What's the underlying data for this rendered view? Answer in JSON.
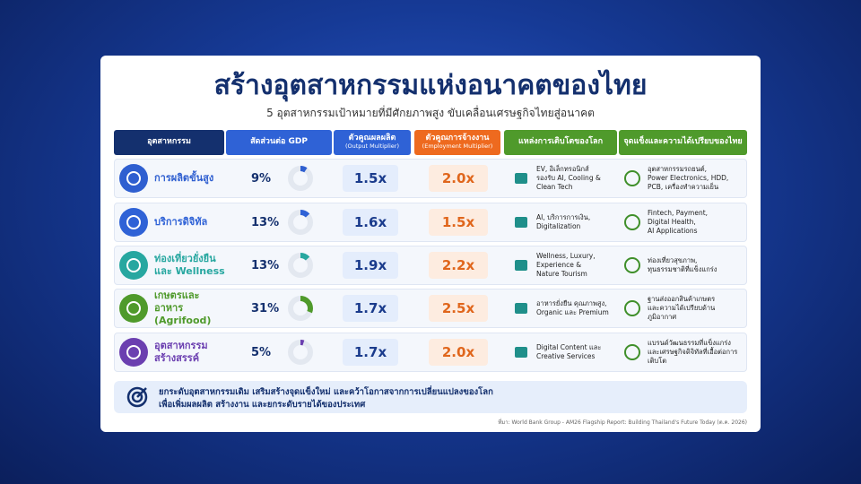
{
  "header": {
    "title": "สร้างอุตสาหกรรมแห่งอนาคตของไทย",
    "subtitle": "5 อุตสาหกรรมเป้าหมายที่มีศักยภาพสูง ขับเคลื่อนเศรษฐกิจไทยสู่อนาคต"
  },
  "table": {
    "columns": [
      {
        "title": "อุตสาหกรรม",
        "color": "#14306e"
      },
      {
        "title": "สัดส่วนต่อ GDP",
        "color": "#2f62d6"
      },
      {
        "title": "ตัวคูณผลผลิต",
        "subtitle": "(Output Multiplier)",
        "color": "#2f62d6"
      },
      {
        "title": "ตัวคูณการจ้างงาน",
        "subtitle": "(Employment Multiplier)",
        "color": "#ee6a1f"
      },
      {
        "title": "แหล่งการเติบโตของโลก",
        "color": "#4f9a2b"
      },
      {
        "title": "จุดแข็งและความได้เปรียบของไทย",
        "color": "#4f9a2b"
      }
    ],
    "rows": [
      {
        "industry": [
          "การผลิตขั้นสูง"
        ],
        "color": "#2f5fd0",
        "gdp_share": {
          "value": 9,
          "label": "9%"
        },
        "output_multiplier": "1.5x",
        "employment_multiplier": "2.0x",
        "growth_sources": [
          "EV, อิเล็กทรอนิกส์",
          "รองรับ AI, Cooling &",
          "Clean Tech"
        ],
        "strengths": [
          "อุตสาหกรรมรถยนต์,",
          "Power Electronics, HDD,",
          "PCB, เครื่องทำความเย็น"
        ]
      },
      {
        "industry": [
          "บริการดิจิทัล"
        ],
        "color": "#2f62d6",
        "gdp_share": {
          "value": 13,
          "label": "13%"
        },
        "output_multiplier": "1.6x",
        "employment_multiplier": "1.5x",
        "growth_sources": [
          "AI, บริการการเงิน,",
          "Digitalization"
        ],
        "strengths": [
          "Fintech, Payment,",
          "Digital Health,",
          "AI Applications"
        ]
      },
      {
        "industry": [
          "ท่องเที่ยวยั่งยืน",
          "และ Wellness"
        ],
        "color": "#27a7a0",
        "gdp_share": {
          "value": 13,
          "label": "13%"
        },
        "output_multiplier": "1.9x",
        "employment_multiplier": "2.2x",
        "growth_sources": [
          "Wellness, Luxury,",
          "Experience &",
          "Nature Tourism"
        ],
        "strengths": [
          "ท่องเที่ยวสุขภาพ,",
          "ทุนธรรมชาติที่แข็งแกร่ง"
        ]
      },
      {
        "industry": [
          "เกษตรและอาหาร",
          "(Agrifood)"
        ],
        "color": "#4f9a2b",
        "gdp_share": {
          "value": 31,
          "label": "31%"
        },
        "output_multiplier": "1.7x",
        "employment_multiplier": "2.5x",
        "growth_sources": [
          "อาหารยั่งยืน คุณภาพสูง,",
          "Organic และ Premium"
        ],
        "strengths": [
          "ฐานส่งออกสินค้าเกษตร",
          "และความได้เปรียบด้าน",
          "ภูมิอากาศ"
        ]
      },
      {
        "industry": [
          "อุตสาหกรรม",
          "สร้างสรรค์"
        ],
        "color": "#6b3fb0",
        "gdp_share": {
          "value": 5,
          "label": "5%"
        },
        "output_multiplier": "1.7x",
        "employment_multiplier": "2.0x",
        "growth_sources": [
          "Digital Content และ",
          "Creative Services"
        ],
        "strengths": [
          "แบรนด์วัฒนธรรมที่แข็งแกร่ง",
          "และเศรษฐกิจดิจิทัลที่เอื้อต่อการเติบโต"
        ]
      }
    ]
  },
  "footer": {
    "lines": [
      "ยกระดับอุตสาหกรรมเดิม เสริมสร้างจุดแข็งใหม่ และคว้าโอกาสจากการเปลี่ยนแปลงของโลก",
      "เพื่อเพิ่มผลผลิต สร้างงาน และยกระดับรายได้ของประเทศ"
    ],
    "source": "ที่มา: World Bank Group - AM26 Flagship Report: Building Thailand's Future Today (ต.ค. 2026)"
  }
}
